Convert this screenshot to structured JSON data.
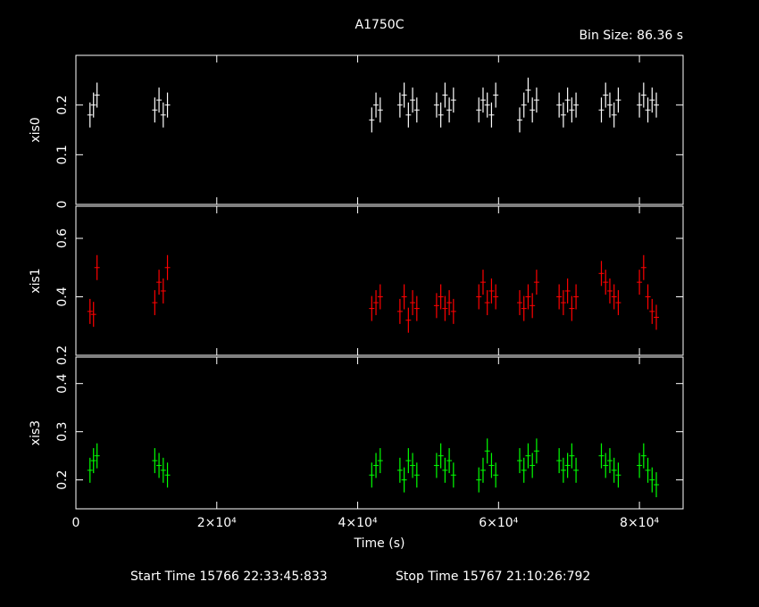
{
  "chart_data": {
    "type": "scatter",
    "title": "A1750C",
    "bin_size": "Bin Size: 86.36 s",
    "xlabel": "Time (s)",
    "start_time": "Start Time 15766 22:33:45:833",
    "stop_time": "Stop Time 15767 21:10:26:792",
    "xlim": [
      0,
      86200
    ],
    "xticks": [
      0,
      {
        "value": 20000,
        "label": "2×10⁴"
      },
      {
        "value": 40000,
        "label": "4×10⁴"
      },
      {
        "value": 60000,
        "label": "6×10⁴"
      },
      {
        "value": 80000,
        "label": "8×10⁴"
      }
    ],
    "x": [
      2000,
      2500,
      3000,
      11200,
      11800,
      12400,
      13000,
      42000,
      42600,
      43200,
      46000,
      46600,
      47200,
      47800,
      48400,
      51200,
      51800,
      52400,
      53000,
      53600,
      57200,
      57800,
      58400,
      59000,
      59600,
      63000,
      63600,
      64200,
      64800,
      65400,
      68600,
      69200,
      69800,
      70400,
      71000,
      74600,
      75200,
      75800,
      76400,
      77000,
      80000,
      80600,
      81200,
      81800,
      82400
    ],
    "panels": [
      {
        "name": "xis0",
        "color": "#ffffff",
        "ylim": [
          0,
          0.3
        ],
        "yticks": [
          0,
          0.1,
          0.2
        ],
        "values": [
          0.18,
          0.2,
          0.22,
          0.19,
          0.21,
          0.18,
          0.2,
          0.17,
          0.2,
          0.19,
          0.2,
          0.22,
          0.18,
          0.21,
          0.19,
          0.2,
          0.18,
          0.22,
          0.19,
          0.21,
          0.19,
          0.21,
          0.2,
          0.18,
          0.22,
          0.17,
          0.2,
          0.23,
          0.19,
          0.21,
          0.2,
          0.18,
          0.21,
          0.19,
          0.2,
          0.19,
          0.22,
          0.2,
          0.18,
          0.21,
          0.2,
          0.22,
          0.19,
          0.21,
          0.2
        ]
      },
      {
        "name": "xis1",
        "color": "#ff0000",
        "ylim": [
          0.2,
          0.71
        ],
        "yticks": [
          0.2,
          0.4,
          0.6
        ],
        "values": [
          0.35,
          0.34,
          0.5,
          0.38,
          0.45,
          0.42,
          0.5,
          0.36,
          0.38,
          0.4,
          0.35,
          0.4,
          0.32,
          0.38,
          0.36,
          0.37,
          0.4,
          0.36,
          0.38,
          0.35,
          0.4,
          0.45,
          0.38,
          0.42,
          0.4,
          0.38,
          0.36,
          0.4,
          0.37,
          0.45,
          0.4,
          0.38,
          0.42,
          0.36,
          0.4,
          0.48,
          0.45,
          0.42,
          0.4,
          0.38,
          0.45,
          0.5,
          0.4,
          0.35,
          0.33
        ]
      },
      {
        "name": "xis3",
        "color": "#00ff00",
        "ylim": [
          0.14,
          0.455
        ],
        "yticks": [
          0.2,
          0.3,
          0.4
        ],
        "values": [
          0.22,
          0.24,
          0.25,
          0.24,
          0.23,
          0.22,
          0.21,
          0.21,
          0.23,
          0.24,
          0.22,
          0.2,
          0.24,
          0.23,
          0.21,
          0.23,
          0.25,
          0.22,
          0.24,
          0.21,
          0.2,
          0.22,
          0.26,
          0.23,
          0.21,
          0.24,
          0.22,
          0.25,
          0.23,
          0.26,
          0.24,
          0.22,
          0.23,
          0.25,
          0.22,
          0.25,
          0.23,
          0.24,
          0.22,
          0.21,
          0.23,
          0.25,
          0.22,
          0.2,
          0.19
        ]
      }
    ]
  }
}
